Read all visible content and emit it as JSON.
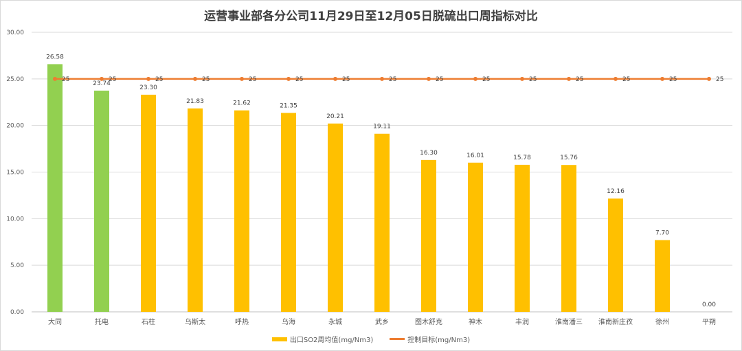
{
  "chart_data": {
    "type": "bar",
    "title": "运营事业部各分公司11月29日至12月05日脱硫出口周指标对比",
    "categories": [
      "大同",
      "托电",
      "石柱",
      "乌斯太",
      "呼热",
      "乌海",
      "永城",
      "武乡",
      "图木舒克",
      "神木",
      "丰润",
      "淮南潘三",
      "淮南新庄孜",
      "徐州",
      "平朔"
    ],
    "series": [
      {
        "name": "出口SO2周均值(mg/Nm3)",
        "type": "bar",
        "values": [
          26.58,
          23.74,
          23.3,
          21.83,
          21.62,
          21.35,
          20.21,
          19.11,
          16.3,
          16.01,
          15.78,
          15.76,
          12.16,
          7.7,
          0.0
        ],
        "colors": [
          "#92d050",
          "#92d050",
          "#ffc000",
          "#ffc000",
          "#ffc000",
          "#ffc000",
          "#ffc000",
          "#ffc000",
          "#ffc000",
          "#ffc000",
          "#ffc000",
          "#ffc000",
          "#ffc000",
          "#ffc000",
          "#ffc000"
        ]
      },
      {
        "name": "控制目标(mg/Nm3)",
        "type": "line",
        "values": [
          25,
          25,
          25,
          25,
          25,
          25,
          25,
          25,
          25,
          25,
          25,
          25,
          25,
          25,
          25
        ],
        "color": "#ed7d31"
      }
    ],
    "ylim": [
      0,
      30
    ],
    "yticks": [
      "0.00",
      "5.00",
      "10.00",
      "15.00",
      "20.00",
      "25.00",
      "30.00"
    ],
    "grid": true,
    "legend": "bottom"
  }
}
